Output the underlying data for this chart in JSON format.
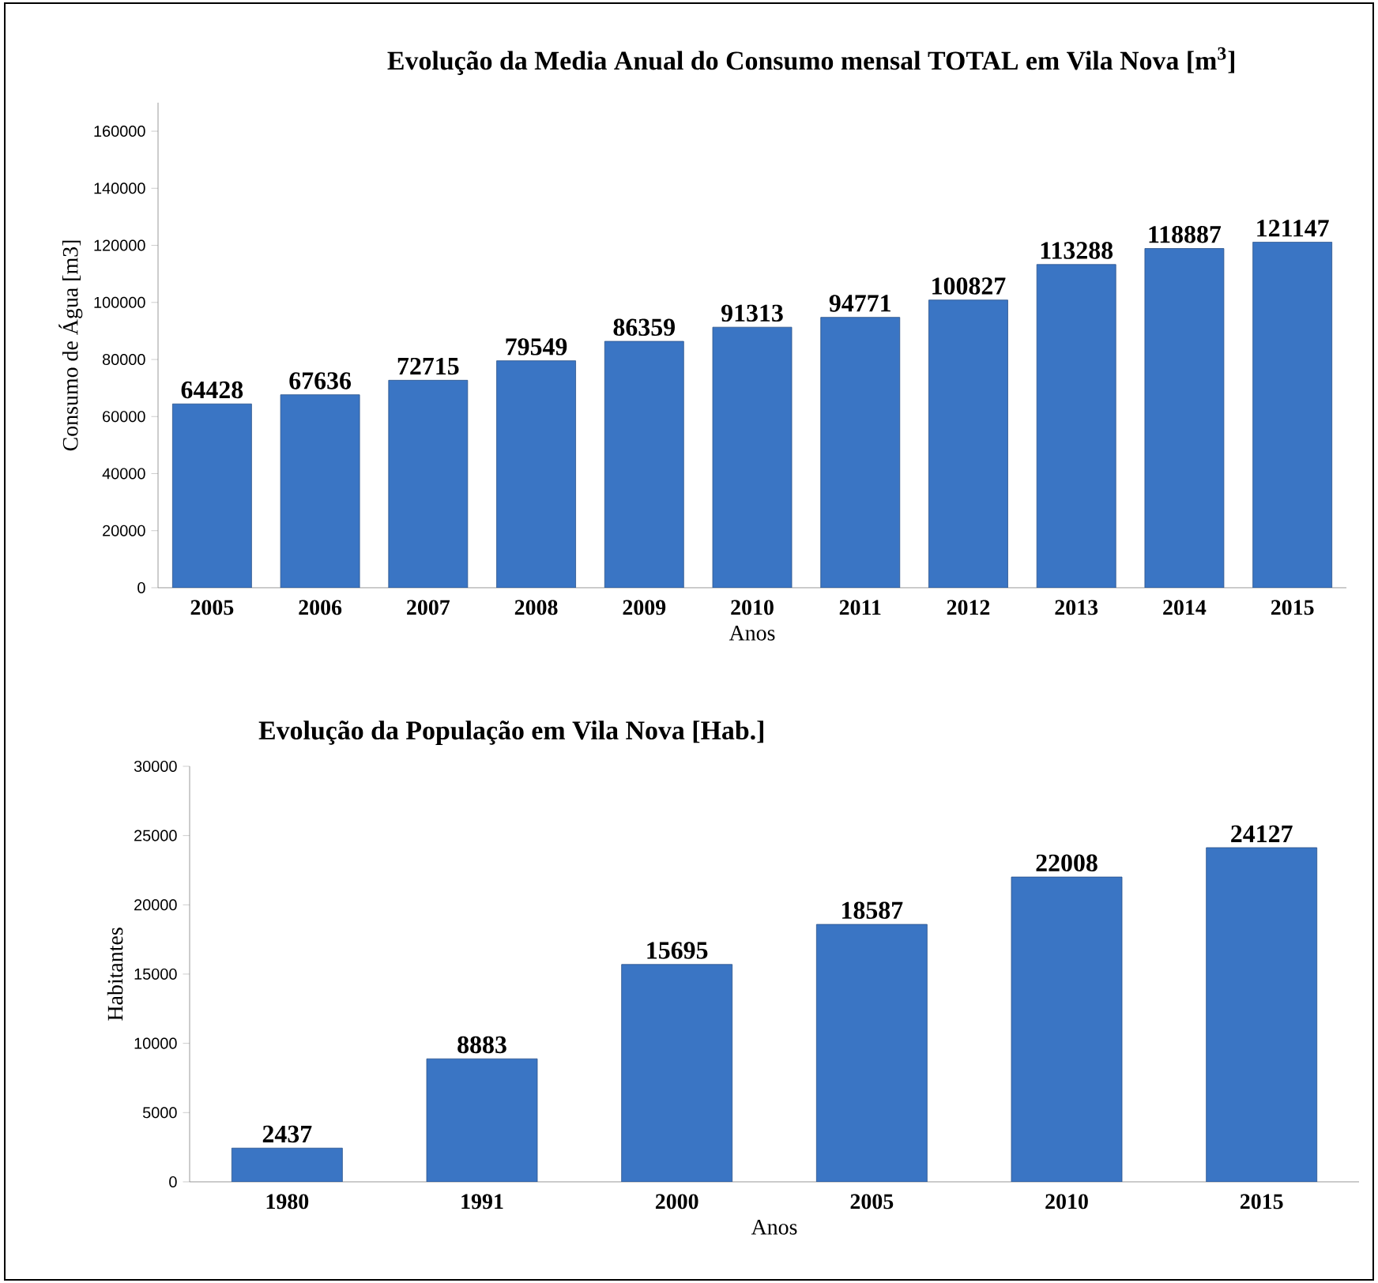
{
  "chart_data": [
    {
      "type": "bar",
      "title": "Evolução da Media Anual do Consumo mensal TOTAL em Vila Nova [m$^{3}$]",
      "xlabel": "Anos",
      "ylabel": "Consumo de Água [m3]",
      "categories": [
        "2005",
        "2006",
        "2007",
        "2008",
        "2009",
        "2010",
        "2011",
        "2012",
        "2013",
        "2014",
        "2015"
      ],
      "values": [
        64428,
        67636,
        72715,
        79549,
        86359,
        91313,
        94771,
        100827,
        113288,
        118887,
        121147
      ],
      "color": "#3a75c4",
      "ylim": [
        0,
        170000
      ],
      "yticks": [
        0,
        20000,
        40000,
        60000,
        80000,
        100000,
        120000,
        140000,
        160000
      ],
      "data_labels": true
    },
    {
      "type": "bar",
      "title": "Evolução da População em Vila Nova [Hab.]",
      "xlabel": "Anos",
      "ylabel": "Habitantes",
      "categories": [
        "1980",
        "1991",
        "2000",
        "2005",
        "2010",
        "2015"
      ],
      "values": [
        2437,
        8883,
        15695,
        18587,
        22008,
        24127
      ],
      "color": "#3a75c4",
      "ylim": [
        0,
        30000
      ],
      "yticks": [
        0,
        5000,
        10000,
        15000,
        20000,
        25000,
        30000
      ],
      "data_labels": true
    }
  ]
}
